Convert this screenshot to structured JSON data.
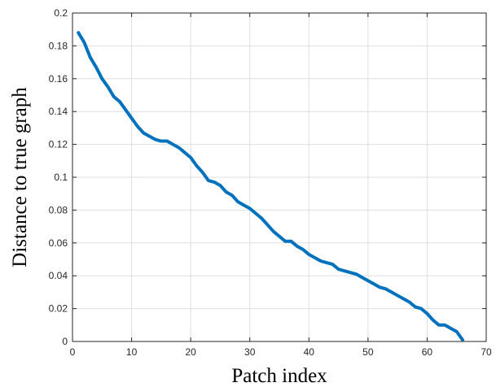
{
  "chart_data": {
    "type": "line",
    "title": "",
    "xlabel": "Patch index",
    "ylabel": "Distance to true graph",
    "xlim": [
      0,
      70
    ],
    "ylim": [
      0,
      0.2
    ],
    "x_ticks": [
      "0",
      "10",
      "20",
      "30",
      "40",
      "50",
      "60",
      "70"
    ],
    "y_ticks": [
      "0",
      "0.02",
      "0.04",
      "0.06",
      "0.08",
      "0.1",
      "0.12",
      "0.14",
      "0.16",
      "0.18",
      "0.2"
    ],
    "grid": true,
    "series": [
      {
        "color": "#0072BD",
        "x": [
          1,
          2,
          3,
          4,
          5,
          6,
          7,
          8,
          9,
          10,
          11,
          12,
          13,
          14,
          15,
          16,
          17,
          18,
          19,
          20,
          21,
          22,
          23,
          24,
          25,
          26,
          27,
          28,
          29,
          30,
          31,
          32,
          33,
          34,
          35,
          36,
          37,
          38,
          39,
          40,
          41,
          42,
          43,
          44,
          45,
          46,
          47,
          48,
          49,
          50,
          51,
          52,
          53,
          54,
          55,
          56,
          57,
          58,
          59,
          60,
          61,
          62,
          63,
          64,
          65,
          66
        ],
        "y": [
          0.188,
          0.182,
          0.173,
          0.167,
          0.16,
          0.155,
          0.149,
          0.146,
          0.141,
          0.136,
          0.131,
          0.127,
          0.125,
          0.123,
          0.122,
          0.122,
          0.12,
          0.118,
          0.115,
          0.112,
          0.107,
          0.103,
          0.098,
          0.097,
          0.095,
          0.091,
          0.089,
          0.085,
          0.083,
          0.081,
          0.078,
          0.075,
          0.071,
          0.067,
          0.064,
          0.061,
          0.061,
          0.058,
          0.056,
          0.053,
          0.051,
          0.049,
          0.048,
          0.047,
          0.044,
          0.043,
          0.042,
          0.041,
          0.039,
          0.037,
          0.035,
          0.033,
          0.032,
          0.03,
          0.028,
          0.026,
          0.024,
          0.021,
          0.02,
          0.017,
          0.013,
          0.01,
          0.01,
          0.008,
          0.006,
          0.001
        ]
      }
    ]
  }
}
